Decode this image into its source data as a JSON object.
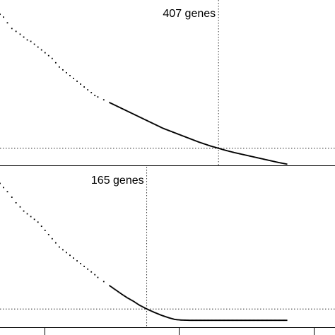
{
  "chart_data": [
    {
      "type": "scatter",
      "annotation": "407 genes",
      "cutoff": 407,
      "xlim": [
        -330,
        800
      ],
      "ylim": [
        -3,
        55
      ],
      "points": [
        [
          -330,
          50
        ],
        [
          -318,
          49
        ],
        [
          -305,
          47
        ],
        [
          -290,
          45
        ],
        [
          -276,
          44
        ],
        [
          -262,
          43
        ],
        [
          -250,
          42
        ],
        [
          -238,
          41
        ],
        [
          -226,
          40.5
        ],
        [
          -214,
          39.5
        ],
        [
          -202,
          38.5
        ],
        [
          -190,
          37.5
        ],
        [
          -178,
          36.5
        ],
        [
          -166,
          35.5
        ],
        [
          -154,
          34.5
        ],
        [
          -142,
          33
        ],
        [
          -130,
          31.5
        ],
        [
          -118,
          30.5
        ],
        [
          -106,
          29.5
        ],
        [
          -94,
          28.5
        ],
        [
          -82,
          27.5
        ],
        [
          -70,
          26.5
        ],
        [
          -58,
          25.5
        ],
        [
          -46,
          24.5
        ],
        [
          -34,
          23.5
        ],
        [
          -22,
          22.5
        ],
        [
          -10,
          21.5
        ],
        [
          0,
          21
        ],
        [
          20,
          20
        ],
        [
          40,
          19
        ],
        [
          60,
          18
        ],
        [
          80,
          17
        ],
        [
          100,
          16
        ],
        [
          120,
          15
        ],
        [
          140,
          14
        ],
        [
          160,
          13
        ],
        [
          180,
          12
        ],
        [
          200,
          11
        ],
        [
          220,
          10
        ],
        [
          240,
          9.2
        ],
        [
          260,
          8.4
        ],
        [
          280,
          7.6
        ],
        [
          300,
          6.8
        ],
        [
          320,
          6
        ],
        [
          340,
          5.2
        ],
        [
          360,
          4.5
        ],
        [
          380,
          3.8
        ],
        [
          407,
          3
        ],
        [
          430,
          2.3
        ],
        [
          460,
          1.5
        ],
        [
          490,
          0.8
        ],
        [
          520,
          0.1
        ],
        [
          550,
          -0.6
        ],
        [
          580,
          -1.3
        ],
        [
          610,
          -2
        ],
        [
          640,
          -2.6
        ]
      ],
      "hline": 3
    },
    {
      "type": "scatter",
      "annotation": "165 genes",
      "cutoff": 165,
      "xlim": [
        -330,
        800
      ],
      "ylim": [
        -3,
        55
      ],
      "points": [
        [
          -330,
          49
        ],
        [
          -318,
          47.5
        ],
        [
          -305,
          46
        ],
        [
          -290,
          44
        ],
        [
          -276,
          42
        ],
        [
          -262,
          40.5
        ],
        [
          -250,
          39
        ],
        [
          -238,
          38
        ],
        [
          -226,
          37
        ],
        [
          -214,
          36
        ],
        [
          -202,
          35
        ],
        [
          -190,
          33.5
        ],
        [
          -178,
          32
        ],
        [
          -166,
          30.5
        ],
        [
          -154,
          29
        ],
        [
          -142,
          27.5
        ],
        [
          -130,
          26
        ],
        [
          -118,
          25
        ],
        [
          -106,
          24
        ],
        [
          -94,
          23
        ],
        [
          -82,
          22
        ],
        [
          -70,
          21
        ],
        [
          -58,
          20
        ],
        [
          -46,
          19
        ],
        [
          -34,
          18
        ],
        [
          -22,
          17
        ],
        [
          -10,
          16
        ],
        [
          0,
          15
        ],
        [
          20,
          13.5
        ],
        [
          40,
          12
        ],
        [
          60,
          10.5
        ],
        [
          80,
          9
        ],
        [
          100,
          7.6
        ],
        [
          120,
          6.4
        ],
        [
          140,
          5
        ],
        [
          165,
          3.6
        ],
        [
          190,
          2.4
        ],
        [
          215,
          1.3
        ],
        [
          240,
          0.4
        ],
        [
          260,
          -0.2
        ],
        [
          280,
          -0.4
        ],
        [
          310,
          -0.5
        ],
        [
          350,
          -0.5
        ],
        [
          400,
          -0.5
        ],
        [
          460,
          -0.5
        ],
        [
          520,
          -0.5
        ],
        [
          580,
          -0.5
        ],
        [
          640,
          -0.5
        ]
      ],
      "hline": 3.6
    }
  ],
  "axis_ticks_visible": 3
}
